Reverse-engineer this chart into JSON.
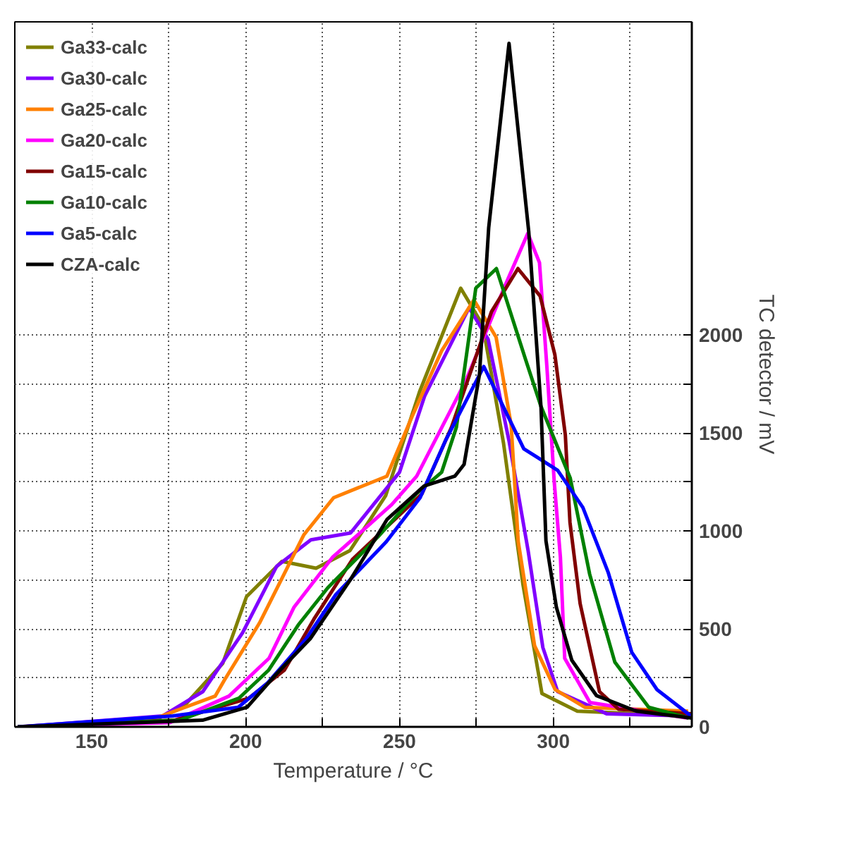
{
  "chart_data": {
    "type": "line",
    "xlabel": "Temperature / °C",
    "ylabel": "TC detector / mV",
    "xlim": [
      125,
      345
    ],
    "ylim": [
      0,
      3600
    ],
    "xticks": [
      150,
      {
        "value": 175,
        "label": null
      },
      200,
      {
        "value": 225,
        "label": null
      },
      250,
      {
        "value": 275,
        "label": null
      },
      300,
      {
        "value": 325,
        "label": null
      }
    ],
    "yticks": [
      0,
      {
        "value": 250,
        "label": null
      },
      500,
      {
        "value": 750,
        "label": null
      },
      1000,
      {
        "value": 1250,
        "label": null
      },
      1500,
      {
        "value": 1750,
        "label": null
      },
      2000
    ],
    "grid": true,
    "legend": "top left",
    "marker": "none",
    "line_style": "solid",
    "series": [
      {
        "name": "Ga33-calc",
        "color": "#808000",
        "x": [
          127,
          168.6,
          179.6,
          192.6,
          200.3,
          211.8,
          222.9,
          233.9,
          245.5,
          256.5,
          269.9,
          277.1,
          283.8,
          290.1,
          296.3,
          307.8,
          344.3
        ],
        "values": [
          0,
          22,
          100,
          325,
          665,
          845,
          810,
          900,
          1180,
          1710,
          2240,
          2050,
          1450,
          730,
          170,
          80,
          56
        ]
      },
      {
        "name": "Ga30-calc",
        "color": "#8000ff",
        "x": [
          127,
          173.1,
          186.1,
          199,
          210.1,
          221.2,
          234.1,
          250,
          258.2,
          272.6,
          278.8,
          285.6,
          291.8,
          296.6,
          301.4,
          317.3,
          343.3
        ],
        "values": [
          0,
          56,
          180,
          480,
          820,
          955,
          990,
          1300,
          1690,
          2140,
          1980,
          1460,
          900,
          405,
          180,
          67,
          56
        ]
      },
      {
        "name": "Ga25-calc",
        "color": "#ff8000",
        "x": [
          126,
          170.9,
          190.1,
          193,
          204.5,
          218.9,
          228.6,
          245.9,
          254.1,
          263.7,
          274.2,
          281.4,
          286.3,
          288.6,
          293.9,
          300.6,
          310.2,
          343.8
        ],
        "values": [
          0,
          45,
          157,
          236,
          530,
          980,
          1170,
          1280,
          1585,
          1920,
          2180,
          1990,
          1540,
          945,
          415,
          190,
          100,
          80
        ]
      },
      {
        "name": "Ga20-calc",
        "color": "#ff00ff",
        "x": [
          126,
          175.4,
          194.6,
          207.6,
          215.7,
          228.2,
          247.5,
          255.6,
          271.5,
          284.5,
          291.7,
          295.5,
          297.9,
          300.3,
          302.3,
          303.7,
          311.9,
          343.6
        ],
        "values": [
          0,
          22,
          157,
          350,
          610,
          865,
          1135,
          1280,
          1765,
          2260,
          2520,
          2370,
          1840,
          1250,
          865,
          350,
          124,
          45
        ]
      },
      {
        "name": "Ga15-calc",
        "color": "#800000",
        "x": [
          126,
          177,
          201,
          212.6,
          222.2,
          234.7,
          257.3,
          266.9,
          279.9,
          288.5,
          295.7,
          300.5,
          303.9,
          305.4,
          308.7,
          315,
          321.2,
          345
        ],
        "values": [
          0,
          34,
          146,
          290,
          550,
          855,
          1190,
          1530,
          2120,
          2340,
          2200,
          1900,
          1490,
          1045,
          630,
          180,
          90,
          67
        ]
      },
      {
        "name": "Ga10-calc",
        "color": "#008000",
        "x": [
          126,
          178.6,
          197.8,
          207.5,
          217.1,
          226.7,
          243,
          255.5,
          263.7,
          268.5,
          274.8,
          281.5,
          291.1,
          295.9,
          305.5,
          311.8,
          320,
          331,
          344
        ],
        "values": [
          0,
          34,
          146,
          290,
          520,
          710,
          970,
          1190,
          1300,
          1530,
          2240,
          2340,
          1870,
          1640,
          1270,
          780,
          330,
          100,
          45
        ]
      },
      {
        "name": "Ga5-calc",
        "color": "#0000ff",
        "x": [
          126,
          176.4,
          197.6,
          207.2,
          219.7,
          229.3,
          245.7,
          256.7,
          264.9,
          277.4,
          290.4,
          301.4,
          309.6,
          317.8,
          325.5,
          333.7,
          344.7
        ],
        "values": [
          0,
          56,
          100,
          225,
          450,
          675,
          945,
          1170,
          1460,
          1840,
          1420,
          1310,
          1120,
          790,
          380,
          190,
          56
        ]
      },
      {
        "name": "CZA-calc",
        "color": "#000000",
        "x": [
          126,
          186,
          200.5,
          210,
          221,
          234,
          246,
          258,
          268,
          271,
          276,
          279,
          285.6,
          292,
          296,
          297.6,
          301,
          306,
          314,
          327,
          345
        ],
        "values": [
          0,
          34,
          100,
          270,
          450,
          750,
          1060,
          1230,
          1280,
          1340,
          1800,
          2550,
          3490,
          2530,
          1630,
          950,
          610,
          340,
          160,
          80,
          45
        ]
      }
    ]
  }
}
